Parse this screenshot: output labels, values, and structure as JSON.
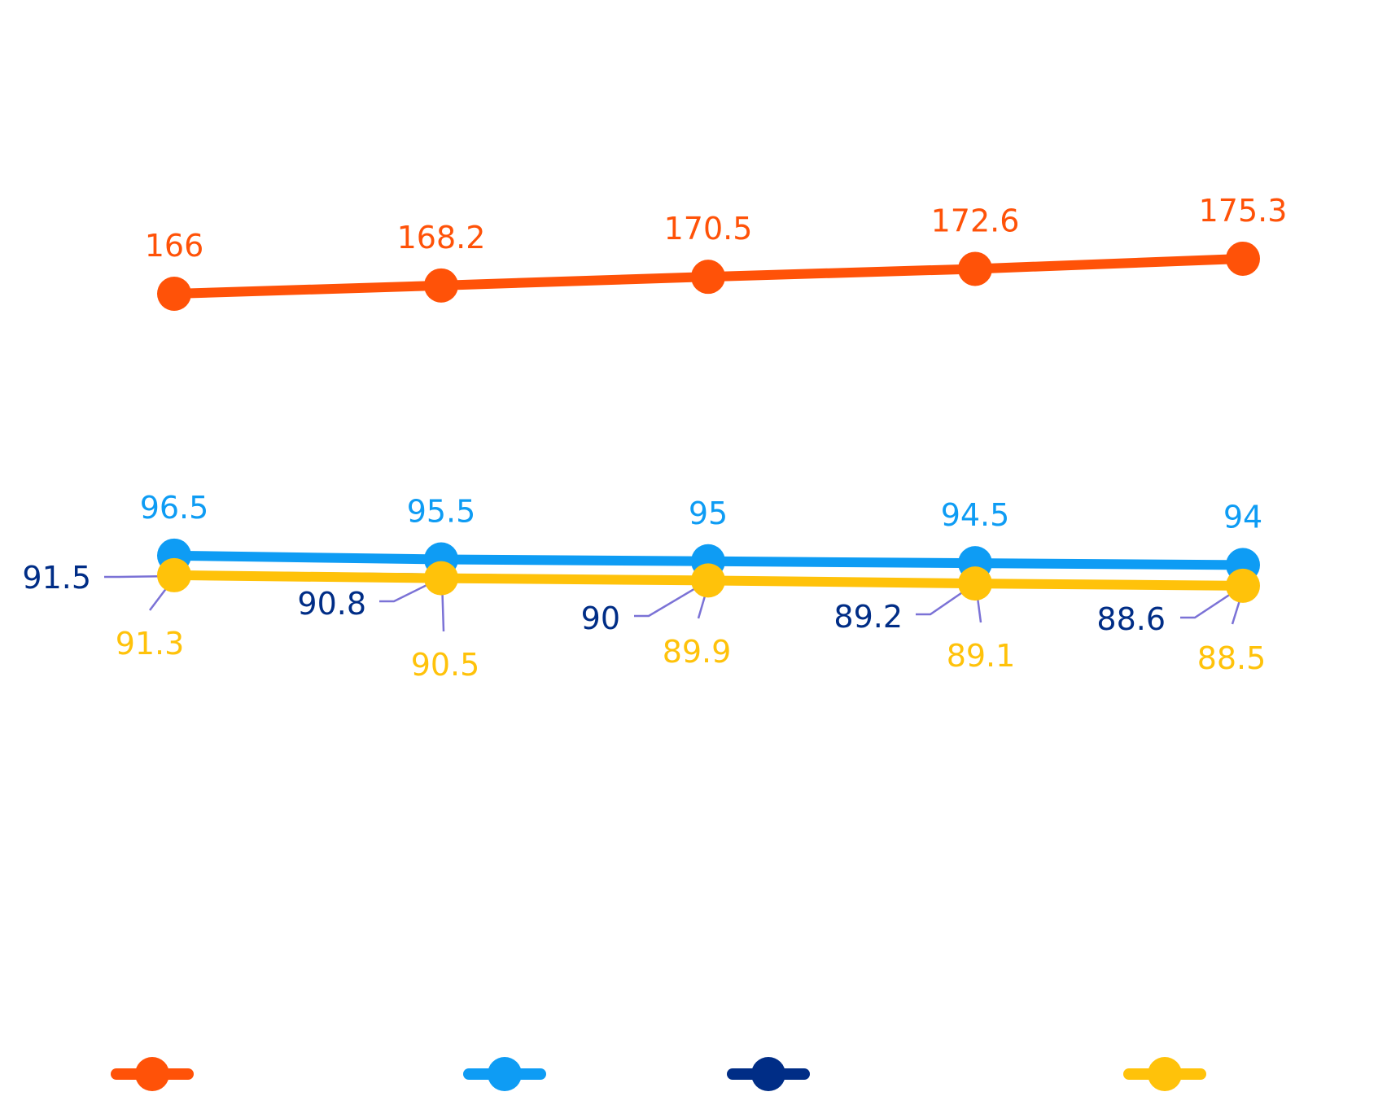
{
  "chart_data": {
    "type": "line",
    "title": "",
    "xlabel": "",
    "ylabel": "",
    "categories": [
      "",
      "",
      "",
      "",
      ""
    ],
    "ylim": [
      0,
      210
    ],
    "grid": false,
    "legend_placement": "bottom",
    "series": [
      {
        "color": "#FF5208",
        "values": [
          166,
          168.2,
          170.5,
          172.6,
          175.3
        ],
        "labels": [
          "166",
          "168.2",
          "170.5",
          "172.6",
          "175.3"
        ]
      },
      {
        "color": "#0E9CF4",
        "values": [
          96.5,
          95.5,
          95,
          94.5,
          94
        ],
        "labels": [
          "96.5",
          "95.5",
          "95",
          "94.5",
          "94"
        ]
      },
      {
        "color": "#002D86",
        "values": [
          91.5,
          90.8,
          90,
          89.2,
          88.6
        ],
        "labels": [
          "91.5",
          "90.8",
          "90",
          "89.2",
          "88.6"
        ]
      },
      {
        "color": "#FFC20A",
        "values": [
          91.3,
          90.5,
          89.9,
          89.1,
          88.5
        ],
        "labels": [
          "91.3",
          "90.5",
          "89.9",
          "89.1",
          "88.5"
        ]
      }
    ],
    "callout_line_color": "#7B72D6"
  }
}
